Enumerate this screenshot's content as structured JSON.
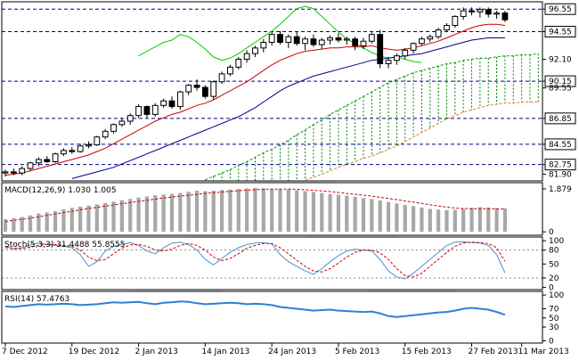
{
  "chart_data": [
    {
      "type": "candlestick",
      "pane": "main",
      "yticks": [
        {
          "value": 96.55,
          "label": "96.55",
          "highlight": true
        },
        {
          "value": 94.55,
          "label": "94.55",
          "highlight": true
        },
        {
          "value": 92.1,
          "label": "92.10",
          "highlight": false
        },
        {
          "value": 90.15,
          "label": "90.15",
          "highlight": true
        },
        {
          "value": 89.55,
          "label": "89.55",
          "highlight": false
        },
        {
          "value": 86.85,
          "label": "86.85",
          "highlight": true
        },
        {
          "value": 84.55,
          "label": "84.55",
          "highlight": true
        },
        {
          "value": 82.75,
          "label": "82.75",
          "highlight": true
        },
        {
          "value": 81.9,
          "label": "81.90",
          "highlight": false
        }
      ],
      "hlines": [
        96.55,
        94.55,
        90.15,
        86.85,
        84.55,
        82.75
      ],
      "ylim": [
        81.3,
        97.2
      ],
      "candles": [
        [
          82.0,
          82.3,
          81.7,
          82.1
        ],
        [
          82.1,
          82.4,
          81.8,
          82.0
        ],
        [
          82.0,
          82.6,
          81.8,
          82.4
        ],
        [
          82.4,
          83.0,
          82.2,
          82.9
        ],
        [
          82.9,
          83.4,
          82.6,
          83.2
        ],
        [
          83.2,
          83.5,
          82.9,
          83.0
        ],
        [
          83.0,
          83.8,
          82.9,
          83.7
        ],
        [
          83.7,
          84.2,
          83.5,
          84.0
        ],
        [
          84.0,
          84.3,
          83.7,
          83.9
        ],
        [
          83.9,
          84.6,
          83.8,
          84.4
        ],
        [
          84.4,
          84.8,
          84.2,
          84.5
        ],
        [
          84.5,
          85.3,
          84.4,
          85.2
        ],
        [
          85.2,
          85.9,
          85.0,
          85.7
        ],
        [
          85.7,
          86.4,
          85.5,
          86.3
        ],
        [
          86.3,
          86.9,
          86.1,
          86.6
        ],
        [
          86.6,
          87.3,
          86.3,
          87.1
        ],
        [
          87.1,
          88.1,
          86.9,
          87.9
        ],
        [
          87.9,
          88.0,
          86.9,
          87.2
        ],
        [
          87.2,
          88.2,
          87.0,
          88.0
        ],
        [
          88.0,
          88.6,
          87.8,
          88.4
        ],
        [
          88.4,
          88.8,
          87.7,
          87.9
        ],
        [
          87.9,
          89.3,
          87.6,
          89.2
        ],
        [
          89.2,
          89.9,
          88.9,
          89.8
        ],
        [
          89.8,
          90.3,
          89.3,
          89.6
        ],
        [
          89.6,
          89.8,
          88.6,
          88.8
        ],
        [
          88.8,
          90.2,
          88.5,
          90.1
        ],
        [
          90.1,
          91.0,
          89.9,
          90.8
        ],
        [
          90.8,
          91.6,
          90.6,
          91.4
        ],
        [
          91.4,
          92.3,
          91.2,
          92.1
        ],
        [
          92.1,
          92.9,
          91.8,
          92.6
        ],
        [
          92.6,
          93.3,
          92.3,
          93.1
        ],
        [
          93.1,
          93.9,
          92.7,
          93.6
        ],
        [
          93.6,
          94.5,
          93.3,
          94.3
        ],
        [
          94.3,
          94.6,
          93.4,
          93.6
        ],
        [
          93.6,
          94.3,
          93.1,
          94.1
        ],
        [
          94.1,
          94.6,
          93.3,
          93.5
        ],
        [
          93.5,
          94.1,
          92.9,
          93.9
        ],
        [
          93.9,
          94.3,
          93.2,
          93.4
        ],
        [
          93.4,
          94.0,
          93.0,
          93.8
        ],
        [
          93.8,
          94.2,
          93.4,
          94.0
        ],
        [
          94.0,
          94.4,
          93.6,
          93.8
        ],
        [
          93.8,
          94.1,
          93.4,
          93.9
        ],
        [
          93.9,
          94.1,
          92.9,
          93.3
        ],
        [
          93.3,
          94.0,
          93.0,
          93.7
        ],
        [
          93.7,
          94.5,
          93.5,
          94.3
        ],
        [
          94.3,
          94.7,
          91.3,
          91.7
        ],
        [
          91.7,
          92.3,
          91.3,
          92.0
        ],
        [
          92.0,
          92.6,
          91.6,
          92.4
        ],
        [
          92.4,
          93.1,
          92.1,
          92.9
        ],
        [
          92.9,
          93.6,
          92.6,
          93.5
        ],
        [
          93.5,
          94.1,
          93.3,
          93.9
        ],
        [
          93.9,
          94.3,
          93.6,
          94.1
        ],
        [
          94.1,
          94.9,
          93.9,
          94.7
        ],
        [
          94.7,
          95.3,
          94.5,
          95.1
        ],
        [
          95.1,
          96.0,
          94.9,
          95.9
        ],
        [
          95.9,
          96.7,
          95.6,
          96.4
        ],
        [
          96.4,
          96.7,
          96.0,
          96.3
        ],
        [
          96.3,
          96.7,
          95.8,
          96.5
        ],
        [
          96.5,
          96.7,
          95.8,
          96.1
        ],
        [
          96.1,
          96.4,
          95.7,
          96.2
        ],
        [
          96.2,
          96.4,
          95.4,
          95.6
        ]
      ],
      "series": [
        {
          "name": "",
          "color": "#cc0000",
          "values": [
            81.8,
            81.9,
            82.0,
            82.2,
            82.4,
            82.6,
            82.8,
            83.0,
            83.2,
            83.4,
            83.6,
            83.9,
            84.2,
            84.6,
            85.0,
            85.4,
            85.8,
            86.2,
            86.6,
            86.9,
            87.2,
            87.4,
            87.7,
            88.0,
            88.2,
            88.5,
            88.9,
            89.3,
            89.7,
            90.1,
            90.6,
            91.1,
            91.6,
            92.0,
            92.3,
            92.6,
            92.8,
            92.9,
            93.0,
            93.1,
            93.1,
            93.2,
            93.2,
            93.2,
            93.3,
            93.1,
            93.0,
            92.9,
            93.0,
            93.1,
            93.3,
            93.5,
            93.7,
            94.0,
            94.3,
            94.6,
            94.9,
            95.1,
            95.2,
            95.2,
            95.1
          ]
        },
        {
          "name": "",
          "color": "#00008b",
          "values": [
            null,
            null,
            null,
            null,
            null,
            null,
            null,
            null,
            81.5,
            81.7,
            81.9,
            82.1,
            82.3,
            82.5,
            82.8,
            83.1,
            83.4,
            83.7,
            84.0,
            84.3,
            84.6,
            84.9,
            85.2,
            85.5,
            85.8,
            86.1,
            86.4,
            86.7,
            87.0,
            87.4,
            87.8,
            88.3,
            88.8,
            89.3,
            89.7,
            90.0,
            90.3,
            90.6,
            90.8,
            91.0,
            91.2,
            91.4,
            91.6,
            91.8,
            92.0,
            92.1,
            92.2,
            92.3,
            92.4,
            92.5,
            92.6,
            92.8,
            93.0,
            93.2,
            93.4,
            93.6,
            93.8,
            93.9,
            94.0,
            94.0,
            94.0
          ]
        },
        {
          "name": "",
          "color": "#00cc00",
          "values": [
            null,
            null,
            null,
            null,
            null,
            null,
            null,
            null,
            null,
            null,
            null,
            null,
            null,
            null,
            null,
            null,
            92.4,
            92.8,
            93.2,
            93.6,
            93.8,
            94.3,
            94.1,
            93.6,
            93.0,
            92.3,
            92.0,
            92.2,
            92.6,
            93.1,
            93.6,
            94.1,
            94.6,
            95.2,
            95.9,
            96.6,
            96.8,
            96.6,
            95.9,
            95.2,
            94.5,
            93.9,
            93.5,
            93.1,
            92.7,
            92.4,
            92.2,
            92.3,
            92.1,
            91.9,
            91.8
          ]
        },
        {
          "name": "",
          "color": "#009900",
          "dashed": true,
          "values": [
            null,
            null,
            null,
            null,
            null,
            null,
            null,
            null,
            null,
            null,
            null,
            null,
            null,
            null,
            null,
            null,
            null,
            null,
            null,
            null,
            null,
            null,
            null,
            null,
            81.4,
            81.7,
            82.0,
            82.3,
            82.7,
            83.0,
            83.4,
            83.8,
            84.1,
            84.5,
            84.9,
            85.4,
            85.8,
            86.3,
            86.7,
            87.2,
            87.6,
            88.0,
            88.4,
            88.8,
            89.2,
            89.6,
            90.0,
            90.3,
            90.6,
            90.9,
            91.1,
            91.3,
            91.5,
            91.7,
            91.8,
            92.0,
            92.1,
            92.2,
            92.2,
            92.3,
            92.4,
            92.4,
            92.5,
            92.5,
            92.6
          ]
        },
        {
          "name": "",
          "color": "#d08030",
          "dashed": true,
          "values": [
            null,
            null,
            null,
            null,
            null,
            null,
            null,
            null,
            null,
            null,
            null,
            null,
            null,
            null,
            null,
            null,
            null,
            null,
            null,
            null,
            null,
            null,
            null,
            null,
            null,
            null,
            null,
            null,
            null,
            null,
            null,
            null,
            null,
            null,
            null,
            null,
            81.4,
            81.6,
            81.9,
            82.2,
            82.5,
            82.8,
            83.0,
            83.3,
            83.5,
            83.8,
            84.1,
            84.4,
            84.8,
            85.2,
            85.6,
            86.0,
            86.4,
            86.8,
            87.1,
            87.4,
            87.6,
            87.8,
            88.0,
            88.1,
            88.2,
            88.2,
            88.3,
            88.3,
            88.3
          ]
        }
      ]
    },
    {
      "type": "bar",
      "pane": "macd",
      "title": "MACD(12,26,9) 1.030 1.005",
      "yticks": [
        {
          "value": 1.879,
          "label": "1.879"
        },
        {
          "value": 0,
          "label": "0"
        }
      ],
      "ylim": [
        -0.15,
        2.15
      ],
      "values": [
        0.55,
        0.6,
        0.65,
        0.72,
        0.8,
        0.85,
        0.9,
        0.98,
        1.05,
        1.1,
        1.15,
        1.2,
        1.26,
        1.32,
        1.38,
        1.44,
        1.5,
        1.55,
        1.6,
        1.63,
        1.66,
        1.7,
        1.75,
        1.8,
        1.78,
        1.8,
        1.83,
        1.85,
        1.88,
        1.9,
        1.92,
        1.9,
        1.88,
        1.87,
        1.85,
        1.82,
        1.78,
        1.74,
        1.7,
        1.65,
        1.62,
        1.58,
        1.53,
        1.48,
        1.43,
        1.37,
        1.3,
        1.24,
        1.18,
        1.12,
        1.06,
        1.0,
        0.97,
        0.95,
        0.96,
        1.0,
        1.05,
        1.08,
        1.06,
        1.04,
        1.03
      ],
      "series": [
        {
          "name": "",
          "color": "#cc0000",
          "dashed": true,
          "values": [
            0.45,
            0.5,
            0.55,
            0.6,
            0.66,
            0.72,
            0.78,
            0.84,
            0.9,
            0.96,
            1.02,
            1.07,
            1.12,
            1.18,
            1.23,
            1.28,
            1.33,
            1.38,
            1.43,
            1.48,
            1.52,
            1.56,
            1.6,
            1.64,
            1.68,
            1.71,
            1.74,
            1.77,
            1.8,
            1.82,
            1.84,
            1.86,
            1.87,
            1.87,
            1.87,
            1.86,
            1.84,
            1.82,
            1.79,
            1.76,
            1.72,
            1.68,
            1.64,
            1.6,
            1.56,
            1.51,
            1.46,
            1.41,
            1.35,
            1.3,
            1.24,
            1.18,
            1.13,
            1.08,
            1.04,
            1.02,
            1.01,
            1.01,
            1.01,
            1.005,
            1.005
          ]
        }
      ]
    },
    {
      "type": "line",
      "pane": "stoch",
      "title": "Stoch(5,3,3) 31.4488 55.8555",
      "yticks": [
        {
          "value": 100,
          "label": "100"
        },
        {
          "value": 80,
          "label": "80"
        },
        {
          "value": 50,
          "label": "50"
        },
        {
          "value": 20,
          "label": "20"
        },
        {
          "value": 0,
          "label": "0"
        }
      ],
      "hlines": [
        80,
        20
      ],
      "ylim": [
        -5,
        108
      ],
      "series": [
        {
          "name": "",
          "color": "#4a90c8",
          "values": [
            88,
            82,
            85,
            91,
            95,
            92,
            90,
            88,
            85,
            70,
            45,
            55,
            78,
            88,
            92,
            96,
            90,
            78,
            72,
            85,
            95,
            97,
            92,
            80,
            60,
            48,
            62,
            75,
            85,
            92,
            95,
            96,
            93,
            70,
            55,
            45,
            35,
            28,
            40,
            55,
            68,
            78,
            82,
            80,
            78,
            60,
            35,
            22,
            18,
            30,
            45,
            60,
            75,
            90,
            97,
            98,
            96,
            95,
            90,
            70,
            31
          ]
        },
        {
          "name": "",
          "color": "#cc0000",
          "dashed": true,
          "values": [
            85,
            84,
            83,
            86,
            90,
            92,
            92,
            90,
            88,
            80,
            65,
            57,
            60,
            72,
            84,
            91,
            92,
            88,
            80,
            78,
            82,
            90,
            94,
            90,
            80,
            65,
            57,
            62,
            72,
            84,
            90,
            94,
            94,
            85,
            72,
            58,
            45,
            35,
            33,
            40,
            52,
            65,
            75,
            80,
            80,
            74,
            60,
            40,
            25,
            22,
            30,
            45,
            60,
            75,
            88,
            95,
            97,
            96,
            94,
            85,
            56
          ]
        }
      ]
    },
    {
      "type": "line",
      "pane": "rsi",
      "title": "RSI(14) 57.4763",
      "yticks": [
        {
          "value": 100,
          "label": "100"
        },
        {
          "value": 70,
          "label": "70"
        },
        {
          "value": 50,
          "label": "50"
        },
        {
          "value": 30,
          "label": "30"
        },
        {
          "value": 0,
          "label": "0"
        }
      ],
      "ylim": [
        -5,
        108
      ],
      "series": [
        {
          "name": "",
          "color": "#2f7fd6",
          "values": [
            75,
            74,
            76,
            78,
            80,
            79,
            80,
            81,
            80,
            78,
            79,
            80,
            82,
            84,
            83,
            84,
            85,
            82,
            80,
            83,
            84,
            86,
            85,
            82,
            80,
            81,
            82,
            83,
            82,
            80,
            81,
            80,
            78,
            74,
            72,
            70,
            68,
            66,
            67,
            68,
            66,
            65,
            64,
            63,
            64,
            60,
            54,
            52,
            54,
            56,
            58,
            60,
            62,
            63,
            66,
            70,
            72,
            70,
            68,
            63,
            57
          ]
        }
      ]
    }
  ],
  "xaxis": {
    "labels": [
      "7 Dec 2012",
      "19 Dec 2012",
      "2 Jan 2013",
      "14 Jan 2013",
      "24 Jan 2013",
      "5 Feb 2013",
      "15 Feb 2013",
      "27 Feb 2013",
      "11 Mar 2013"
    ],
    "label_index": [
      0,
      8,
      16,
      24,
      32,
      40,
      48,
      56,
      62
    ],
    "count": 65
  },
  "colors": {
    "up_candle": "#ffffff",
    "down_candle": "#000000",
    "grid_dash": "#00008b",
    "cloud_hatch": "#008000",
    "watermark": "#b8c8e6"
  }
}
